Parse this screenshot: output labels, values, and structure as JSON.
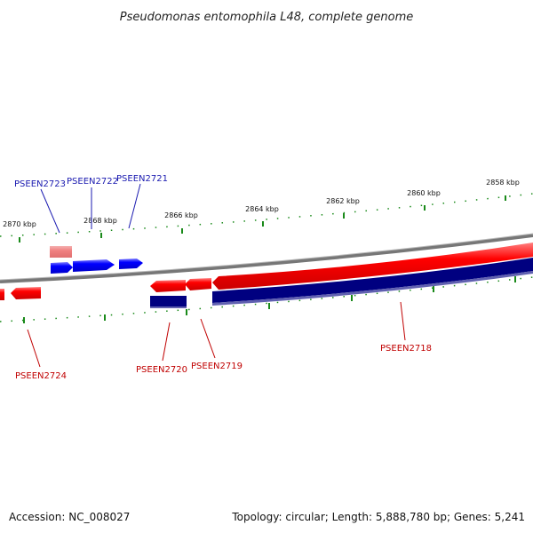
{
  "title": "Pseudomonas entomophila L48, complete genome",
  "footer": {
    "accession": "Accession: NC_008027",
    "summary": "Topology: circular; Length: 5,888,780 bp; Genes: 5,241"
  },
  "colors": {
    "forward_gene": "#ff0000",
    "forward_gene_light": "#f08080",
    "reverse_gene": "#0000ff",
    "dark_gene": "#000080",
    "backbone": "#888888",
    "tick": "#1a8a1a",
    "label_blue": "#1a1ab0",
    "label_red": "#c00000"
  },
  "ticks": [
    "2870 kbp",
    "2868 kbp",
    "2866 kbp",
    "2864 kbp",
    "2862 kbp",
    "2860 kbp",
    "2858 kbp"
  ],
  "gene_labels": [
    {
      "id": "PSEEN2723",
      "color": "blue"
    },
    {
      "id": "PSEEN2722",
      "color": "blue"
    },
    {
      "id": "PSEEN2721",
      "color": "blue"
    },
    {
      "id": "PSEEN2724",
      "color": "red"
    },
    {
      "id": "PSEEN2720",
      "color": "red"
    },
    {
      "id": "PSEEN2719",
      "color": "red"
    },
    {
      "id": "PSEEN2718",
      "color": "red"
    }
  ]
}
